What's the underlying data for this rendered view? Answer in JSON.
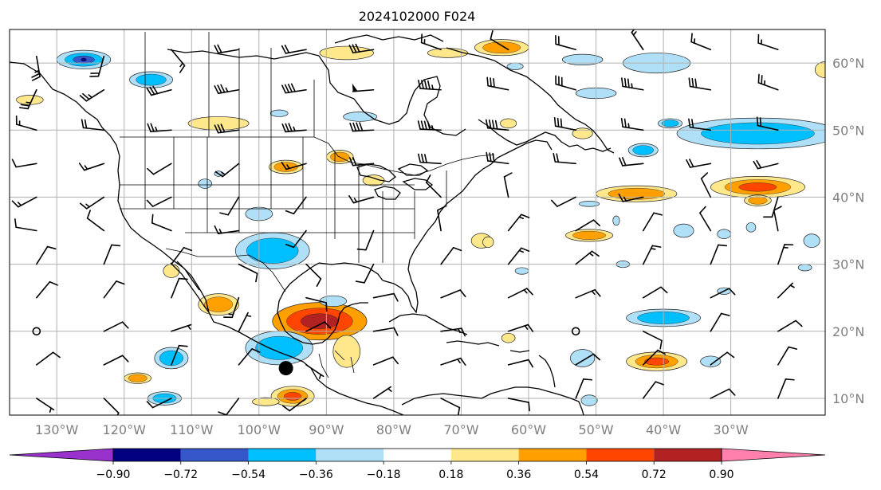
{
  "title": "2024102000 F024",
  "map": {
    "lon_range": [
      -137,
      -16
    ],
    "lat_range": [
      7.5,
      65
    ],
    "lon_ticks": [
      {
        "value": -130,
        "label": "130°W"
      },
      {
        "value": -120,
        "label": "120°W"
      },
      {
        "value": -110,
        "label": "110°W"
      },
      {
        "value": -100,
        "label": "100°W"
      },
      {
        "value": -90,
        "label": "90°W"
      },
      {
        "value": -80,
        "label": "80°W"
      },
      {
        "value": -70,
        "label": "70°W"
      },
      {
        "value": -60,
        "label": "60°W"
      },
      {
        "value": -50,
        "label": "50°W"
      },
      {
        "value": -40,
        "label": "40°W"
      },
      {
        "value": -30,
        "label": "30°W"
      }
    ],
    "lat_ticks": [
      {
        "value": 60,
        "label": "60°N"
      },
      {
        "value": 50,
        "label": "50°N"
      },
      {
        "value": 40,
        "label": "40°N"
      },
      {
        "value": 30,
        "label": "30°N"
      },
      {
        "value": 20,
        "label": "20°N"
      },
      {
        "value": 10,
        "label": "10°N"
      }
    ],
    "grid": true,
    "marker": {
      "lon": -96,
      "lat": 14.5
    }
  },
  "colorbar": {
    "colors": [
      "#9932cc",
      "#000080",
      "#3557c9",
      "#00bfff",
      "#b0e0f7",
      "#ffffff",
      "#ffe88c",
      "#ffa000",
      "#ff4500",
      "#b22222",
      "#ff80ac"
    ],
    "tick_labels": [
      "−0.90",
      "−0.72",
      "−0.54",
      "−0.36",
      "−0.18",
      "0.18",
      "0.36",
      "0.54",
      "0.72",
      "0.90"
    ],
    "extend": "both"
  },
  "anomalies": [
    {
      "lon": -91,
      "lat": 21.5,
      "rx": 7,
      "ry": 2.8,
      "levels": [
        0.36,
        0.54,
        0.72
      ]
    },
    {
      "lon": -67,
      "lat": 33.5,
      "rx": 1.5,
      "ry": 1.1,
      "levels": [
        0.18
      ]
    },
    {
      "lon": -87,
      "lat": 17,
      "rx": 2,
      "ry": 2.4,
      "levels": [
        0.18
      ]
    },
    {
      "lon": -106,
      "lat": 24,
      "rx": 3,
      "ry": 1.6,
      "levels": [
        0.18,
        0.36
      ]
    },
    {
      "lon": -95,
      "lat": 10.3,
      "rx": 3.2,
      "ry": 1.5,
      "levels": [
        0.18,
        0.36,
        0.54
      ]
    },
    {
      "lon": -83,
      "lat": 42.5,
      "rx": 1.6,
      "ry": 0.8,
      "levels": [
        0.18
      ]
    },
    {
      "lon": -88,
      "lat": 46,
      "rx": 2,
      "ry": 1,
      "levels": [
        0.18,
        0.36
      ]
    },
    {
      "lon": -96,
      "lat": 44.5,
      "rx": 2.5,
      "ry": 1,
      "levels": [
        0.18,
        0.36
      ]
    },
    {
      "lon": -106,
      "lat": 51,
      "rx": 4.5,
      "ry": 1,
      "levels": [
        0.18
      ]
    },
    {
      "lon": -87,
      "lat": 61.5,
      "rx": 4,
      "ry": 1,
      "levels": [
        0.18
      ]
    },
    {
      "lon": -72,
      "lat": 61.5,
      "rx": 3,
      "ry": 0.7,
      "levels": [
        0.18
      ]
    },
    {
      "lon": -64,
      "lat": 62.3,
      "rx": 4,
      "ry": 1.2,
      "levels": [
        0.18,
        0.36
      ]
    },
    {
      "lon": -66,
      "lat": 33.3,
      "rx": 0.8,
      "ry": 0.8,
      "levels": [
        0.18
      ]
    },
    {
      "lon": -63,
      "lat": 19,
      "rx": 1,
      "ry": 0.7,
      "levels": [
        0.18
      ]
    },
    {
      "lon": -44,
      "lat": 40.5,
      "rx": 6,
      "ry": 1.2,
      "levels": [
        0.18,
        0.36
      ]
    },
    {
      "lon": -26,
      "lat": 41.5,
      "rx": 7,
      "ry": 1.6,
      "levels": [
        0.18,
        0.36,
        0.54
      ]
    },
    {
      "lon": -51,
      "lat": 34.3,
      "rx": 3.5,
      "ry": 0.9,
      "levels": [
        0.18,
        0.36
      ]
    },
    {
      "lon": -41,
      "lat": 15.5,
      "rx": 4.5,
      "ry": 1.4,
      "levels": [
        0.18,
        0.36,
        0.54
      ]
    },
    {
      "lon": -52,
      "lat": 49.5,
      "rx": 1.5,
      "ry": 0.8,
      "levels": [
        0.18
      ]
    },
    {
      "lon": -63,
      "lat": 51,
      "rx": 1.2,
      "ry": 0.7,
      "levels": [
        0.18
      ]
    },
    {
      "lon": -16,
      "lat": 59,
      "rx": 1.5,
      "ry": 1.2,
      "levels": [
        0.18
      ]
    },
    {
      "lon": -118,
      "lat": 13,
      "rx": 2,
      "ry": 0.8,
      "levels": [
        0.18,
        0.36
      ]
    },
    {
      "lon": -113,
      "lat": 29,
      "rx": 1.2,
      "ry": 1,
      "levels": [
        0.18
      ]
    },
    {
      "lon": -26,
      "lat": 39.5,
      "rx": 2,
      "ry": 0.8,
      "levels": [
        0.18,
        0.36
      ]
    },
    {
      "lon": -134,
      "lat": 54.5,
      "rx": 2,
      "ry": 0.7,
      "levels": [
        0.18
      ]
    },
    {
      "lon": -99,
      "lat": 9.5,
      "rx": 2,
      "ry": 0.6,
      "levels": [
        0.18
      ]
    },
    {
      "lon": -126,
      "lat": 60.5,
      "rx": 4,
      "ry": 1.4,
      "levels": [
        -0.18,
        -0.36,
        -0.54,
        -0.72
      ]
    },
    {
      "lon": -116,
      "lat": 57.5,
      "rx": 3.2,
      "ry": 1.2,
      "levels": [
        -0.18,
        -0.36
      ]
    },
    {
      "lon": -98,
      "lat": 32,
      "rx": 5.5,
      "ry": 2.7,
      "levels": [
        -0.18,
        -0.36
      ]
    },
    {
      "lon": -100,
      "lat": 37.5,
      "rx": 2,
      "ry": 1,
      "levels": [
        -0.18
      ]
    },
    {
      "lon": -113,
      "lat": 16,
      "rx": 2.5,
      "ry": 1.6,
      "levels": [
        -0.18,
        -0.36
      ]
    },
    {
      "lon": -97,
      "lat": 17.5,
      "rx": 5,
      "ry": 2.5,
      "levels": [
        -0.18,
        -0.36
      ]
    },
    {
      "lon": -89,
      "lat": 24.5,
      "rx": 2,
      "ry": 0.8,
      "levels": [
        -0.18
      ]
    },
    {
      "lon": -114,
      "lat": 10,
      "rx": 2.5,
      "ry": 1,
      "levels": [
        -0.18,
        -0.36
      ]
    },
    {
      "lon": -108,
      "lat": 42,
      "rx": 1,
      "ry": 0.7,
      "levels": [
        -0.18
      ]
    },
    {
      "lon": -85,
      "lat": 52,
      "rx": 2.5,
      "ry": 0.7,
      "levels": [
        -0.18
      ]
    },
    {
      "lon": -50,
      "lat": 55.5,
      "rx": 3,
      "ry": 0.8,
      "levels": [
        -0.18
      ]
    },
    {
      "lon": -52,
      "lat": 60.5,
      "rx": 3,
      "ry": 0.8,
      "levels": [
        -0.18
      ]
    },
    {
      "lon": -41,
      "lat": 60,
      "rx": 5,
      "ry": 1.5,
      "levels": [
        -0.18
      ]
    },
    {
      "lon": -62,
      "lat": 59.5,
      "rx": 1.2,
      "ry": 0.5,
      "levels": [
        -0.18
      ]
    },
    {
      "lon": -26,
      "lat": 49.5,
      "rx": 12,
      "ry": 2.3,
      "levels": [
        -0.18,
        -0.36
      ]
    },
    {
      "lon": -39,
      "lat": 51,
      "rx": 1.8,
      "ry": 0.7,
      "levels": [
        -0.18,
        -0.36
      ]
    },
    {
      "lon": -43,
      "lat": 47,
      "rx": 2.2,
      "ry": 1,
      "levels": [
        -0.18,
        -0.36
      ]
    },
    {
      "lon": -40,
      "lat": 22,
      "rx": 5.5,
      "ry": 1.3,
      "levels": [
        -0.18,
        -0.36
      ]
    },
    {
      "lon": -37,
      "lat": 35,
      "rx": 1.5,
      "ry": 1,
      "levels": [
        -0.18
      ]
    },
    {
      "lon": -31,
      "lat": 34.5,
      "rx": 1,
      "ry": 0.7,
      "levels": [
        -0.18
      ]
    },
    {
      "lon": -18,
      "lat": 33.5,
      "rx": 1.2,
      "ry": 1,
      "levels": [
        -0.18
      ]
    },
    {
      "lon": -52,
      "lat": 16,
      "rx": 1.8,
      "ry": 1.3,
      "levels": [
        -0.18
      ]
    },
    {
      "lon": -33,
      "lat": 15.5,
      "rx": 1.5,
      "ry": 0.8,
      "levels": [
        -0.18
      ]
    },
    {
      "lon": -51,
      "lat": 9.7,
      "rx": 1.2,
      "ry": 0.8,
      "levels": [
        -0.18
      ]
    },
    {
      "lon": -47,
      "lat": 36.5,
      "rx": 0.5,
      "ry": 0.7,
      "levels": [
        -0.18
      ]
    },
    {
      "lon": -61,
      "lat": 29,
      "rx": 1,
      "ry": 0.5,
      "levels": [
        -0.18
      ]
    },
    {
      "lon": -31,
      "lat": 26,
      "rx": 1,
      "ry": 0.5,
      "levels": [
        -0.18
      ]
    },
    {
      "lon": -27,
      "lat": 35.5,
      "rx": 0.7,
      "ry": 0.7,
      "levels": [
        -0.18
      ]
    },
    {
      "lon": -46,
      "lat": 30,
      "rx": 1,
      "ry": 0.5,
      "levels": [
        -0.18
      ]
    },
    {
      "lon": -19,
      "lat": 29.5,
      "rx": 1,
      "ry": 0.5,
      "levels": [
        -0.18
      ]
    },
    {
      "lon": -51,
      "lat": 39,
      "rx": 1.5,
      "ry": 0.4,
      "levels": [
        -0.18
      ]
    },
    {
      "lon": -97,
      "lat": 52.5,
      "rx": 1.3,
      "ry": 0.5,
      "levels": [
        -0.18
      ]
    },
    {
      "lon": -106,
      "lat": 43.5,
      "rx": 0.6,
      "ry": 0.4,
      "levels": [
        -0.18
      ]
    }
  ],
  "barbs": [
    {
      "lon": -133,
      "lat": 61,
      "u": -4,
      "v": 24
    },
    {
      "lon": -123,
      "lat": 61,
      "u": 5,
      "v": 18
    },
    {
      "lon": -113,
      "lat": 62,
      "u": -10,
      "v": 12
    },
    {
      "lon": -103,
      "lat": 62,
      "u": 18,
      "v": 3
    },
    {
      "lon": -93,
      "lat": 62,
      "u": 22,
      "v": 4
    },
    {
      "lon": -83,
      "lat": 62,
      "u": 32,
      "v": 5
    },
    {
      "lon": -73,
      "lat": 62,
      "u": 14,
      "v": -5
    },
    {
      "lon": -63,
      "lat": 62,
      "u": 10,
      "v": -6
    },
    {
      "lon": -53,
      "lat": 62,
      "u": 18,
      "v": -5
    },
    {
      "lon": -43,
      "lat": 62,
      "u": 8,
      "v": -12
    },
    {
      "lon": -33,
      "lat": 62,
      "u": 15,
      "v": -6
    },
    {
      "lon": -23,
      "lat": 62,
      "u": 12,
      "v": -4
    },
    {
      "lon": -133,
      "lat": 56,
      "u": 10,
      "v": 22
    },
    {
      "lon": -123,
      "lat": 56,
      "u": 22,
      "v": 14
    },
    {
      "lon": -113,
      "lat": 56,
      "u": 30,
      "v": 8
    },
    {
      "lon": -103,
      "lat": 56,
      "u": 35,
      "v": 6
    },
    {
      "lon": -93,
      "lat": 56,
      "u": 40,
      "v": 6
    },
    {
      "lon": -83,
      "lat": 56,
      "u": 50,
      "v": 4
    },
    {
      "lon": -73,
      "lat": 56,
      "u": 45,
      "v": -3
    },
    {
      "lon": -63,
      "lat": 56,
      "u": 30,
      "v": -6
    },
    {
      "lon": -53,
      "lat": 56,
      "u": 28,
      "v": -8
    },
    {
      "lon": -43,
      "lat": 56,
      "u": 35,
      "v": -6
    },
    {
      "lon": -33,
      "lat": 56,
      "u": 30,
      "v": -5
    },
    {
      "lon": -23,
      "lat": 56,
      "u": 22,
      "v": -8
    },
    {
      "lon": -133,
      "lat": 50,
      "u": 14,
      "v": -4
    },
    {
      "lon": -123,
      "lat": 50,
      "u": 18,
      "v": -2
    },
    {
      "lon": -113,
      "lat": 50,
      "u": 26,
      "v": 2
    },
    {
      "lon": -103,
      "lat": 50,
      "u": 30,
      "v": 4
    },
    {
      "lon": -93,
      "lat": 50,
      "u": 35,
      "v": 3
    },
    {
      "lon": -83,
      "lat": 50,
      "u": 40,
      "v": 2
    },
    {
      "lon": -73,
      "lat": 50,
      "u": 45,
      "v": -2
    },
    {
      "lon": -63,
      "lat": 50,
      "u": 40,
      "v": -4
    },
    {
      "lon": -53,
      "lat": 50,
      "u": 30,
      "v": -6
    },
    {
      "lon": -43,
      "lat": 50,
      "u": 25,
      "v": -4
    },
    {
      "lon": -33,
      "lat": 50,
      "u": 22,
      "v": -3
    },
    {
      "lon": -23,
      "lat": 50,
      "u": 18,
      "v": -4
    },
    {
      "lon": -133,
      "lat": 45,
      "u": 12,
      "v": 2
    },
    {
      "lon": -123,
      "lat": 45,
      "u": 12,
      "v": 4
    },
    {
      "lon": -113,
      "lat": 45,
      "u": 10,
      "v": 6
    },
    {
      "lon": -103,
      "lat": 45,
      "u": 10,
      "v": 8
    },
    {
      "lon": -93,
      "lat": 45,
      "u": 14,
      "v": 4
    },
    {
      "lon": -83,
      "lat": 45,
      "u": 22,
      "v": 2
    },
    {
      "lon": -73,
      "lat": 45,
      "u": 30,
      "v": -2
    },
    {
      "lon": -63,
      "lat": 45,
      "u": 30,
      "v": -4
    },
    {
      "lon": -53,
      "lat": 45,
      "u": 22,
      "v": -2
    },
    {
      "lon": -43,
      "lat": 45,
      "u": 20,
      "v": 2
    },
    {
      "lon": -33,
      "lat": 45,
      "u": 22,
      "v": 4
    },
    {
      "lon": -23,
      "lat": 45,
      "u": 20,
      "v": 5
    },
    {
      "lon": -133,
      "lat": 40,
      "u": 15,
      "v": 8
    },
    {
      "lon": -123,
      "lat": 40,
      "u": 12,
      "v": 8
    },
    {
      "lon": -113,
      "lat": 40,
      "u": 8,
      "v": 4
    },
    {
      "lon": -103,
      "lat": 40,
      "u": 6,
      "v": 10
    },
    {
      "lon": -93,
      "lat": 40,
      "u": 6,
      "v": 8
    },
    {
      "lon": -83,
      "lat": 40,
      "u": 14,
      "v": 4
    },
    {
      "lon": -73,
      "lat": 40,
      "u": 8,
      "v": -8
    },
    {
      "lon": -63,
      "lat": 40,
      "u": 2,
      "v": -10
    },
    {
      "lon": -53,
      "lat": 40,
      "u": 10,
      "v": 5
    },
    {
      "lon": -43,
      "lat": 40,
      "u": 14,
      "v": 3
    },
    {
      "lon": -33,
      "lat": 40,
      "u": 4,
      "v": -8
    },
    {
      "lon": -23,
      "lat": 40,
      "u": 3,
      "v": 10
    },
    {
      "lon": -133,
      "lat": 35,
      "u": 12,
      "v": -2
    },
    {
      "lon": -123,
      "lat": 35,
      "u": 8,
      "v": -6
    },
    {
      "lon": -113,
      "lat": 35,
      "u": 10,
      "v": -4
    },
    {
      "lon": -103,
      "lat": 35,
      "u": 14,
      "v": 2
    },
    {
      "lon": -93,
      "lat": 35,
      "u": 6,
      "v": 8
    },
    {
      "lon": -83,
      "lat": 35,
      "u": 4,
      "v": 10
    },
    {
      "lon": -73,
      "lat": 35,
      "u": 2,
      "v": -12
    },
    {
      "lon": -63,
      "lat": 35,
      "u": -8,
      "v": -10
    },
    {
      "lon": -53,
      "lat": 35,
      "u": -10,
      "v": -6
    },
    {
      "lon": -43,
      "lat": 35,
      "u": -6,
      "v": -10
    },
    {
      "lon": -33,
      "lat": 35,
      "u": 6,
      "v": -10
    },
    {
      "lon": -23,
      "lat": 35,
      "u": 2,
      "v": -10
    },
    {
      "lon": -133,
      "lat": 30,
      "u": -5,
      "v": -8
    },
    {
      "lon": -123,
      "lat": 30,
      "u": -4,
      "v": -10
    },
    {
      "lon": -113,
      "lat": 30,
      "u": -6,
      "v": -8
    },
    {
      "lon": -103,
      "lat": 30,
      "u": -8,
      "v": 4
    },
    {
      "lon": -93,
      "lat": 30,
      "u": -6,
      "v": 6
    },
    {
      "lon": -83,
      "lat": 30,
      "u": 4,
      "v": 8
    },
    {
      "lon": -73,
      "lat": 30,
      "u": -6,
      "v": -8
    },
    {
      "lon": -63,
      "lat": 30,
      "u": -8,
      "v": -10
    },
    {
      "lon": -53,
      "lat": 30,
      "u": -10,
      "v": -8
    },
    {
      "lon": -43,
      "lat": 30,
      "u": -6,
      "v": -12
    },
    {
      "lon": -33,
      "lat": 30,
      "u": -4,
      "v": -10
    },
    {
      "lon": -23,
      "lat": 30,
      "u": -4,
      "v": -12
    },
    {
      "lon": -133,
      "lat": 25,
      "u": -5,
      "v": -6
    },
    {
      "lon": -123,
      "lat": 25,
      "u": -6,
      "v": -8
    },
    {
      "lon": -113,
      "lat": 25,
      "u": -4,
      "v": -10
    },
    {
      "lon": -103,
      "lat": 25,
      "u": 4,
      "v": 12
    },
    {
      "lon": -93,
      "lat": 25,
      "u": -8,
      "v": 2
    },
    {
      "lon": -83,
      "lat": 25,
      "u": -10,
      "v": -2
    },
    {
      "lon": -73,
      "lat": 25,
      "u": -10,
      "v": -4
    },
    {
      "lon": -63,
      "lat": 25,
      "u": -12,
      "v": -6
    },
    {
      "lon": -53,
      "lat": 25,
      "u": -12,
      "v": -5
    },
    {
      "lon": -43,
      "lat": 25,
      "u": -10,
      "v": -6
    },
    {
      "lon": -33,
      "lat": 25,
      "u": -8,
      "v": -4
    },
    {
      "lon": -23,
      "lat": 25,
      "u": -5,
      "v": -5
    },
    {
      "lon": -133,
      "lat": 20,
      "u": 0,
      "v": 0
    },
    {
      "lon": -123,
      "lat": 20,
      "u": -8,
      "v": -4
    },
    {
      "lon": -113,
      "lat": 20,
      "u": -6,
      "v": -2
    },
    {
      "lon": -103,
      "lat": 20,
      "u": -3,
      "v": -6
    },
    {
      "lon": -93,
      "lat": 20,
      "u": -8,
      "v": -4
    },
    {
      "lon": -83,
      "lat": 20,
      "u": -12,
      "v": -2
    },
    {
      "lon": -73,
      "lat": 20,
      "u": -14,
      "v": -2
    },
    {
      "lon": -63,
      "lat": 20,
      "u": -12,
      "v": -4
    },
    {
      "lon": -53,
      "lat": 20,
      "u": 0,
      "v": 0
    },
    {
      "lon": -43,
      "lat": 20,
      "u": -8,
      "v": 4
    },
    {
      "lon": -33,
      "lat": 20,
      "u": -6,
      "v": -10
    },
    {
      "lon": -23,
      "lat": 20,
      "u": -10,
      "v": -6
    },
    {
      "lon": -133,
      "lat": 15,
      "u": -8,
      "v": -6
    },
    {
      "lon": -123,
      "lat": 15,
      "u": -8,
      "v": -4
    },
    {
      "lon": -113,
      "lat": 15,
      "u": -4,
      "v": -10
    },
    {
      "lon": -103,
      "lat": 15,
      "u": -5,
      "v": -6
    },
    {
      "lon": -93,
      "lat": 15,
      "u": -6,
      "v": 4
    },
    {
      "lon": -83,
      "lat": 15,
      "u": -10,
      "v": -4
    },
    {
      "lon": -73,
      "lat": 15,
      "u": -12,
      "v": -4
    },
    {
      "lon": -63,
      "lat": 15,
      "u": -12,
      "v": -3
    },
    {
      "lon": -53,
      "lat": 15,
      "u": -10,
      "v": -6
    },
    {
      "lon": -43,
      "lat": 15,
      "u": -8,
      "v": -8
    },
    {
      "lon": -33,
      "lat": 15,
      "u": -8,
      "v": -6
    },
    {
      "lon": -23,
      "lat": 15,
      "u": -6,
      "v": -10
    },
    {
      "lon": -133,
      "lat": 10,
      "u": -6,
      "v": 4
    },
    {
      "lon": -123,
      "lat": 10,
      "u": -6,
      "v": 6
    },
    {
      "lon": -113,
      "lat": 10,
      "u": 8,
      "v": 4
    },
    {
      "lon": -103,
      "lat": 10,
      "u": 6,
      "v": 8
    },
    {
      "lon": -93,
      "lat": 10,
      "u": 8,
      "v": 6
    },
    {
      "lon": -83,
      "lat": 10,
      "u": -6,
      "v": -4
    },
    {
      "lon": -73,
      "lat": 10,
      "u": -8,
      "v": 4
    },
    {
      "lon": -63,
      "lat": 10,
      "u": -10,
      "v": 2
    },
    {
      "lon": -53,
      "lat": 10,
      "u": -4,
      "v": -10
    },
    {
      "lon": -43,
      "lat": 10,
      "u": -6,
      "v": -8
    },
    {
      "lon": -33,
      "lat": 10,
      "u": -8,
      "v": -4
    },
    {
      "lon": -23,
      "lat": 10,
      "u": -4,
      "v": -10
    }
  ]
}
